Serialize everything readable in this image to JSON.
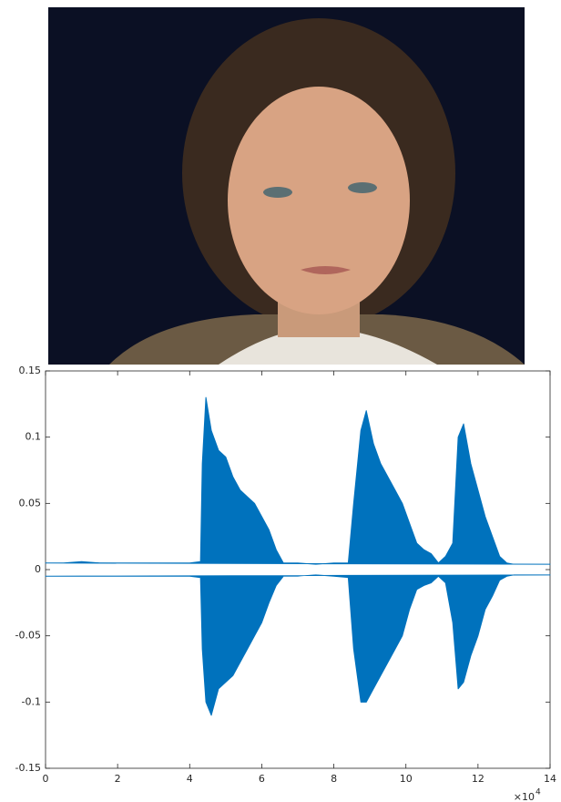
{
  "chart_data": {
    "type": "area",
    "x": [
      0,
      0.5,
      1,
      1.5,
      2,
      2.5,
      3,
      3.5,
      4,
      4.3,
      4.35,
      4.45,
      4.6,
      4.8,
      5,
      5.2,
      5.4,
      5.6,
      5.8,
      6,
      6.2,
      6.4,
      6.6,
      7,
      7.5,
      8,
      8.4,
      8.55,
      8.75,
      8.9,
      9.1,
      9.3,
      9.5,
      9.7,
      9.9,
      10.1,
      10.3,
      10.5,
      10.7,
      10.9,
      11.1,
      11.3,
      11.45,
      11.6,
      11.8,
      12,
      12.2,
      12.4,
      12.6,
      12.8,
      13,
      13.5,
      14
    ],
    "series": [
      {
        "color": "#0072bd",
        "values": [
          0.005,
          0.005,
          0.006,
          0.005,
          0.005,
          0.005,
          0.005,
          0.005,
          0.005,
          0.006,
          0.08,
          0.13,
          0.105,
          0.09,
          0.085,
          0.07,
          0.06,
          0.055,
          0.05,
          0.04,
          0.03,
          0.015,
          0.005,
          0.005,
          0.004,
          0.005,
          0.005,
          0.05,
          0.105,
          0.12,
          0.095,
          0.08,
          0.07,
          0.06,
          0.05,
          0.035,
          0.02,
          0.015,
          0.012,
          0.005,
          0.01,
          0.02,
          0.1,
          0.11,
          0.08,
          0.06,
          0.04,
          0.025,
          0.01,
          0.005,
          0.004,
          0.004,
          0.004
        ]
      },
      {
        "color": "#0072bd",
        "values": [
          -0.005,
          -0.005,
          -0.005,
          -0.005,
          -0.005,
          -0.005,
          -0.005,
          -0.005,
          -0.005,
          -0.006,
          -0.06,
          -0.1,
          -0.11,
          -0.09,
          -0.085,
          -0.08,
          -0.07,
          -0.06,
          -0.05,
          -0.04,
          -0.025,
          -0.012,
          -0.005,
          -0.005,
          -0.004,
          -0.005,
          -0.006,
          -0.06,
          -0.1,
          -0.1,
          -0.09,
          -0.08,
          -0.07,
          -0.06,
          -0.05,
          -0.03,
          -0.015,
          -0.012,
          -0.01,
          -0.005,
          -0.01,
          -0.04,
          -0.09,
          -0.085,
          -0.065,
          -0.05,
          -0.03,
          -0.02,
          -0.008,
          -0.005,
          -0.004,
          -0.004,
          -0.004
        ]
      }
    ],
    "xlim": [
      0,
      14
    ],
    "xticks": [
      0,
      2,
      4,
      6,
      8,
      10,
      12,
      14
    ],
    "ylim": [
      -0.15,
      0.15
    ],
    "yticks": [
      -0.15,
      -0.1,
      -0.05,
      0,
      0.05,
      0.1,
      0.15
    ],
    "x_multiplier": "×10",
    "x_exponent": "4"
  }
}
